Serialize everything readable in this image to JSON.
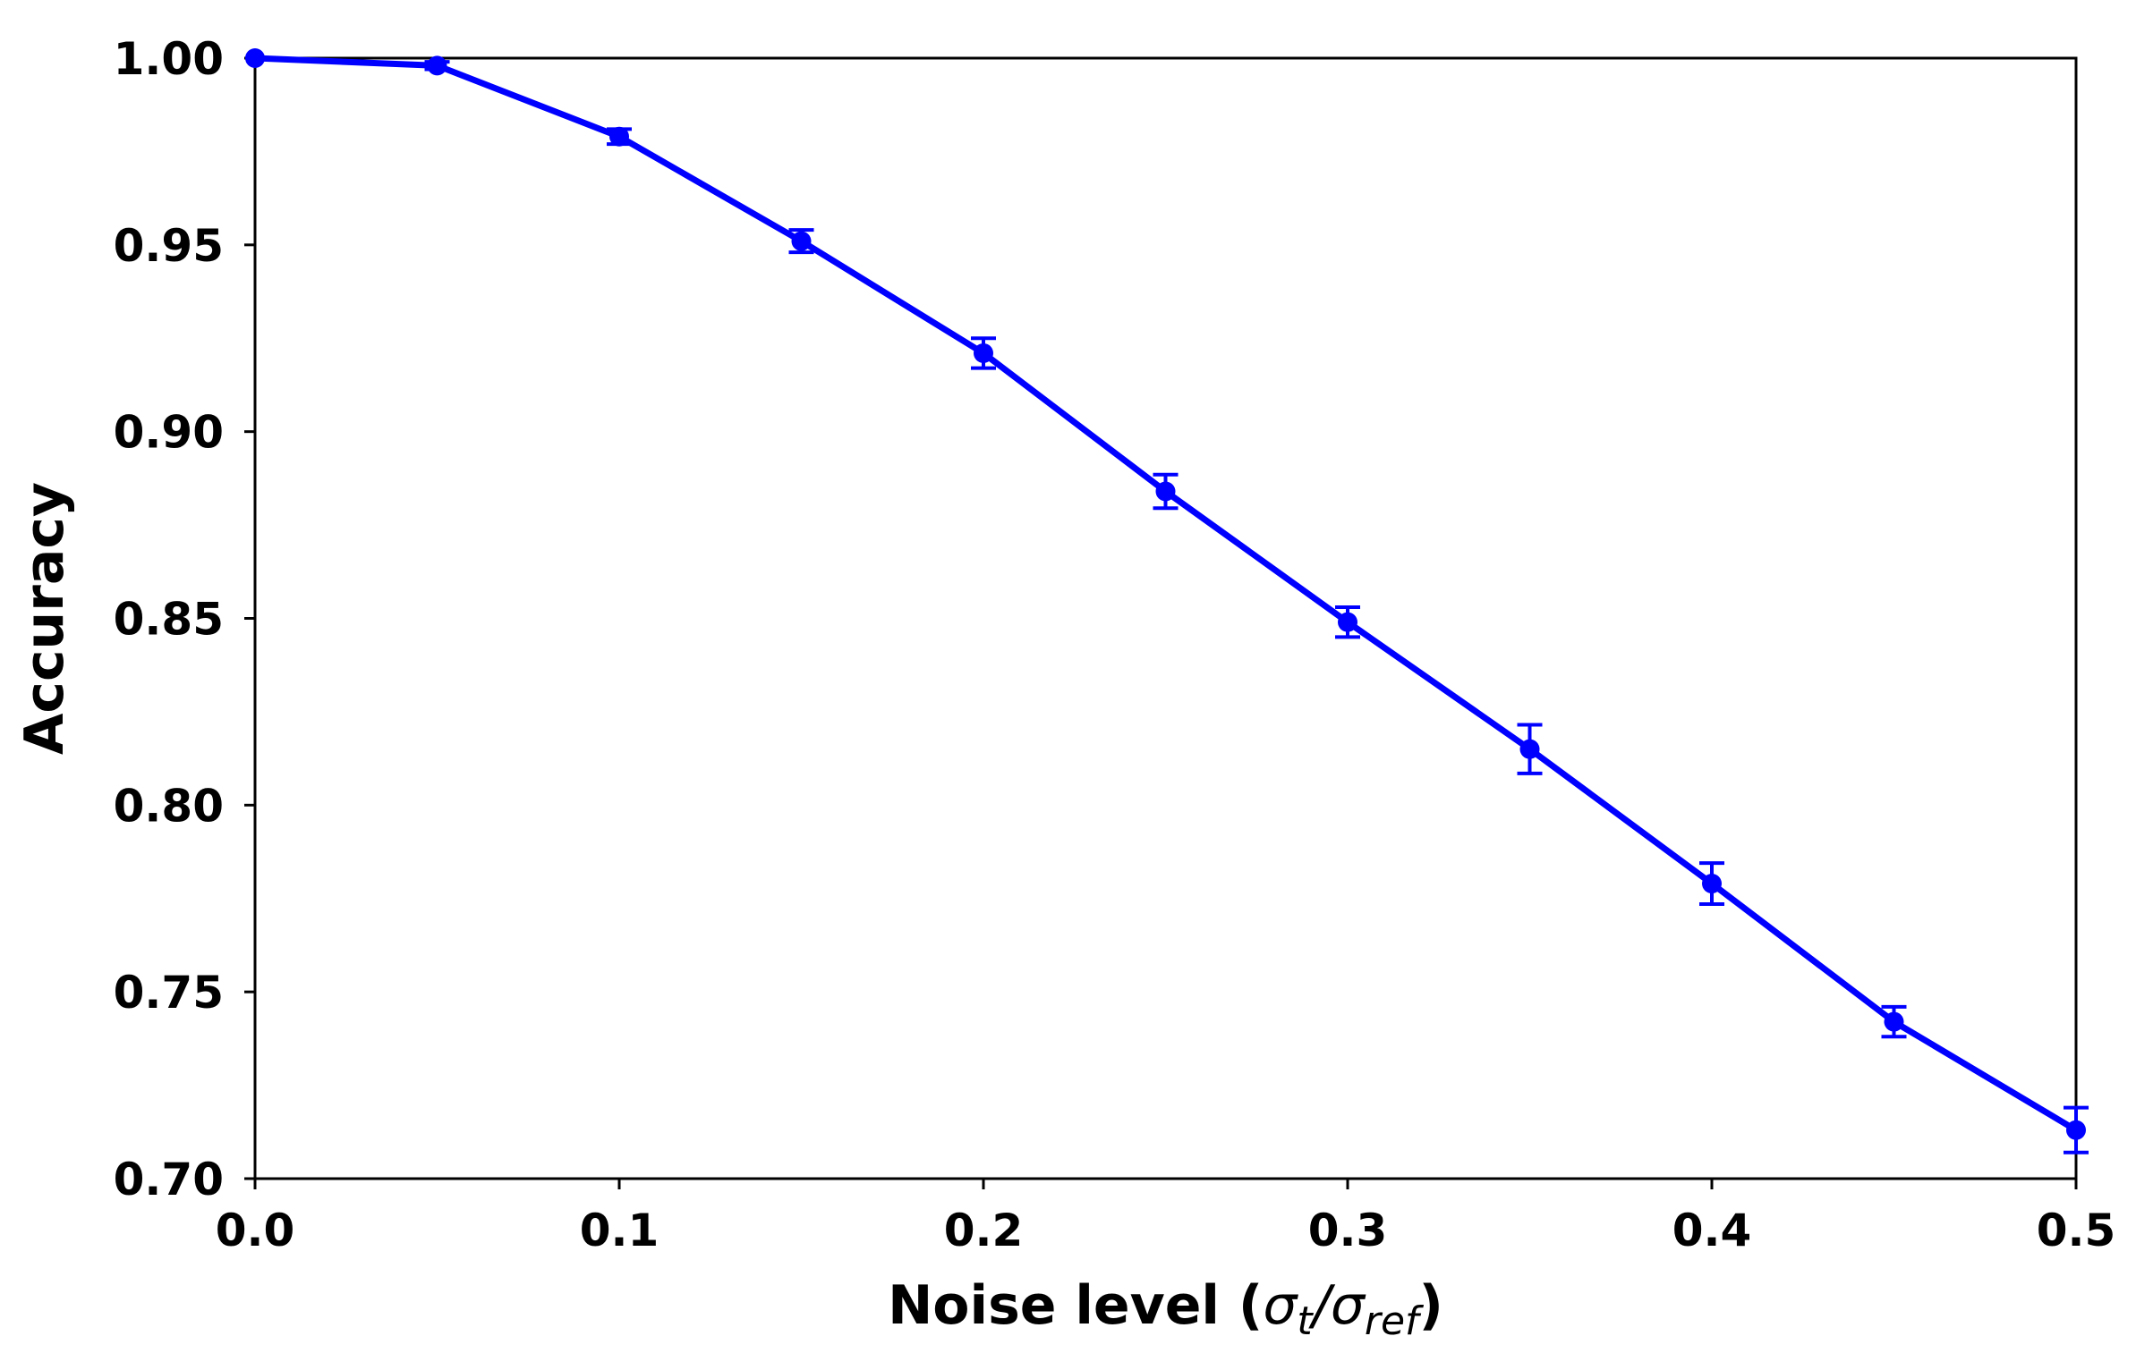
{
  "chart_data": {
    "type": "line",
    "title": "",
    "xlabel": {
      "prefix": "Noise level (",
      "sigma1": "σ",
      "sub1": "t",
      "slash": "/",
      "sigma2": "σ",
      "sub2": "ref",
      "suffix": ")"
    },
    "ylabel": "Accuracy",
    "xlim": [
      0.0,
      0.5
    ],
    "ylim": [
      0.7,
      1.0
    ],
    "x_ticks": [
      0.0,
      0.1,
      0.2,
      0.3,
      0.4,
      0.5
    ],
    "x_tick_labels": [
      "0.0",
      "0.1",
      "0.2",
      "0.3",
      "0.4",
      "0.5"
    ],
    "y_ticks": [
      0.7,
      0.75,
      0.8,
      0.85,
      0.9,
      0.95,
      1.0
    ],
    "y_tick_labels": [
      "0.70",
      "0.75",
      "0.80",
      "0.85",
      "0.90",
      "0.95",
      "1.00"
    ],
    "grid": false,
    "color": "#0000ff",
    "series": [
      {
        "x": [
          0.0,
          0.05,
          0.1,
          0.15,
          0.2,
          0.25,
          0.3,
          0.35,
          0.4,
          0.45,
          0.5
        ],
        "y": [
          1.0,
          0.998,
          0.979,
          0.951,
          0.921,
          0.884,
          0.849,
          0.815,
          0.779,
          0.742,
          0.713
        ],
        "yerr": [
          0.0,
          0.001,
          0.002,
          0.003,
          0.004,
          0.0045,
          0.004,
          0.0065,
          0.0055,
          0.004,
          0.006
        ]
      }
    ]
  }
}
